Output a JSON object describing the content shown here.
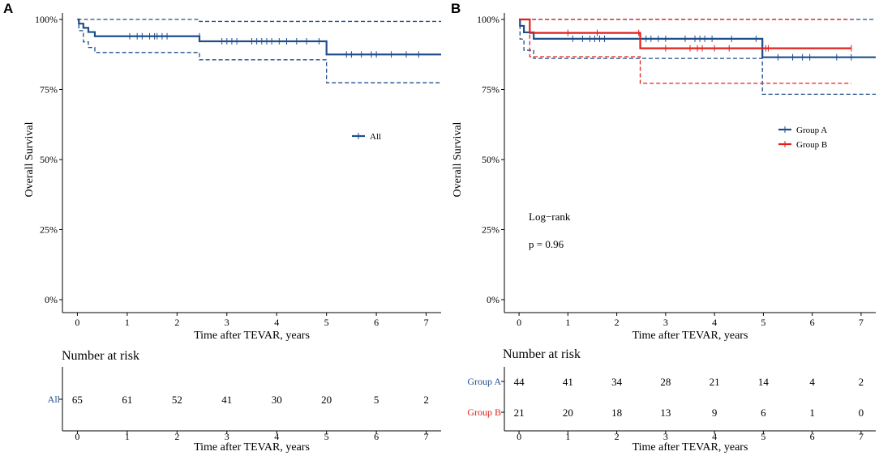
{
  "panels": {
    "A": {
      "letter": "A"
    },
    "B": {
      "letter": "B"
    }
  },
  "colors": {
    "blue": "#1f4e8c",
    "red": "#e0201b",
    "axis": "#000000"
  },
  "risk_common": {
    "title": "Number at risk",
    "xlabel": "Time after TEVAR, years"
  },
  "chart_data": [
    {
      "type": "line",
      "panel": "A",
      "subtype": "kaplan-meier",
      "xlabel": "Time after TEVAR, years",
      "ylabel": "Overall Survival",
      "xlim": [
        -0.3,
        7.3
      ],
      "ylim": [
        0,
        100
      ],
      "xticks": [
        0,
        1,
        2,
        3,
        4,
        5,
        6,
        7
      ],
      "yticks": [
        0,
        25,
        50,
        75,
        100
      ],
      "ytick_labels": [
        "0%",
        "25%",
        "50%",
        "75%",
        "100%"
      ],
      "legend": [
        "All"
      ],
      "series": [
        {
          "name": "All",
          "color": "#1f4e8c",
          "steps": [
            [
              0,
              100
            ],
            [
              0.03,
              98.5
            ],
            [
              0.12,
              97
            ],
            [
              0.22,
              95.5
            ],
            [
              0.35,
              94
            ],
            [
              2.45,
              94
            ],
            [
              2.45,
              92.2
            ],
            [
              4.9,
              92.2
            ],
            [
              5.0,
              87.5
            ],
            [
              7.3,
              87.5
            ]
          ],
          "ci_upper": [
            [
              0,
              100
            ],
            [
              2.45,
              100
            ],
            [
              2.45,
              99.3
            ],
            [
              7.3,
              99.3
            ]
          ],
          "ci_lower": [
            [
              0,
              100
            ],
            [
              0.03,
              96
            ],
            [
              0.12,
              92
            ],
            [
              0.22,
              90
            ],
            [
              0.35,
              88.2
            ],
            [
              2.45,
              88.2
            ],
            [
              2.45,
              85.6
            ],
            [
              5.0,
              85.6
            ],
            [
              5.0,
              77.4
            ],
            [
              7.3,
              77.4
            ]
          ],
          "censored": [
            [
              1.05,
              94
            ],
            [
              1.2,
              94
            ],
            [
              1.3,
              94
            ],
            [
              1.45,
              94
            ],
            [
              1.55,
              94
            ],
            [
              1.6,
              94
            ],
            [
              1.7,
              94
            ],
            [
              1.8,
              94
            ],
            [
              2.45,
              94
            ],
            [
              2.9,
              92.2
            ],
            [
              3.0,
              92.2
            ],
            [
              3.1,
              92.2
            ],
            [
              3.2,
              92.2
            ],
            [
              3.5,
              92.2
            ],
            [
              3.6,
              92.2
            ],
            [
              3.7,
              92.2
            ],
            [
              3.8,
              92.2
            ],
            [
              3.9,
              92.2
            ],
            [
              4.05,
              92.2
            ],
            [
              4.2,
              92.2
            ],
            [
              4.4,
              92.2
            ],
            [
              4.6,
              92.2
            ],
            [
              4.85,
              92.2
            ],
            [
              5.4,
              87.5
            ],
            [
              5.5,
              87.5
            ],
            [
              5.7,
              87.5
            ],
            [
              5.9,
              87.5
            ],
            [
              6.0,
              87.5
            ],
            [
              6.3,
              87.5
            ],
            [
              6.6,
              87.5
            ],
            [
              6.85,
              87.5
            ]
          ]
        }
      ],
      "risk_table": {
        "title": "Number at risk",
        "xlabel": "Time after TEVAR, years",
        "times": [
          0,
          1,
          2,
          3,
          4,
          5,
          6,
          7
        ],
        "rows": [
          {
            "label": "All",
            "color": "#1f4e8c",
            "values": [
              "65",
              "61",
              "52",
              "41",
              "30",
              "20",
              "5",
              "2"
            ]
          }
        ]
      }
    },
    {
      "type": "line",
      "panel": "B",
      "subtype": "kaplan-meier",
      "xlabel": "Time after TEVAR, years",
      "ylabel": "Overall Survival",
      "xlim": [
        -0.3,
        7.3
      ],
      "ylim": [
        0,
        100
      ],
      "xticks": [
        0,
        1,
        2,
        3,
        4,
        5,
        6,
        7
      ],
      "yticks": [
        0,
        25,
        50,
        75,
        100
      ],
      "ytick_labels": [
        "0%",
        "25%",
        "50%",
        "75%",
        "100%"
      ],
      "legend": [
        "Group A",
        "Group B"
      ],
      "annotations": [
        "Log−rank",
        "p = 0.96"
      ],
      "series": [
        {
          "name": "Group A",
          "color": "#1f4e8c",
          "steps": [
            [
              0,
              100
            ],
            [
              0.02,
              97.7
            ],
            [
              0.1,
              95.4
            ],
            [
              0.3,
              93.1
            ],
            [
              4.98,
              93.1
            ],
            [
              4.98,
              86.5
            ],
            [
              7.3,
              86.5
            ]
          ],
          "ci_upper": [
            [
              0,
              100
            ],
            [
              7.3,
              100
            ]
          ],
          "ci_lower": [
            [
              0,
              100
            ],
            [
              0.02,
              93
            ],
            [
              0.1,
              89
            ],
            [
              0.3,
              86.1
            ],
            [
              4.98,
              86.1
            ],
            [
              4.98,
              73.3
            ],
            [
              7.3,
              73.3
            ]
          ],
          "censored": [
            [
              1.1,
              93.1
            ],
            [
              1.3,
              93.1
            ],
            [
              1.45,
              93.1
            ],
            [
              1.55,
              93.1
            ],
            [
              1.65,
              93.1
            ],
            [
              1.75,
              93.1
            ],
            [
              2.6,
              93.1
            ],
            [
              2.7,
              93.1
            ],
            [
              2.85,
              93.1
            ],
            [
              3.0,
              93.1
            ],
            [
              3.4,
              93.1
            ],
            [
              3.6,
              93.1
            ],
            [
              3.7,
              93.1
            ],
            [
              3.8,
              93.1
            ],
            [
              3.95,
              93.1
            ],
            [
              4.35,
              93.1
            ],
            [
              4.85,
              93.1
            ],
            [
              5.3,
              86.5
            ],
            [
              5.6,
              86.5
            ],
            [
              5.8,
              86.5
            ],
            [
              5.95,
              86.5
            ],
            [
              6.5,
              86.5
            ],
            [
              6.8,
              86.5
            ]
          ]
        },
        {
          "name": "Group B",
          "color": "#e0201b",
          "steps": [
            [
              0,
              100
            ],
            [
              0.22,
              100
            ],
            [
              0.22,
              95.2
            ],
            [
              2.48,
              95.2
            ],
            [
              2.48,
              89.7
            ],
            [
              6.8,
              89.7
            ]
          ],
          "ci_upper": [
            [
              0,
              100
            ],
            [
              6.8,
              100
            ]
          ],
          "ci_lower": [
            [
              0,
              100
            ],
            [
              0.22,
              100
            ],
            [
              0.22,
              86.7
            ],
            [
              2.48,
              86.7
            ],
            [
              2.48,
              77.2
            ],
            [
              6.8,
              77.2
            ]
          ],
          "censored": [
            [
              1.0,
              95.2
            ],
            [
              1.6,
              95.2
            ],
            [
              2.45,
              95.2
            ],
            [
              3.0,
              89.7
            ],
            [
              3.5,
              89.7
            ],
            [
              3.65,
              89.7
            ],
            [
              3.75,
              89.7
            ],
            [
              4.0,
              89.7
            ],
            [
              4.3,
              89.7
            ],
            [
              5.05,
              89.7
            ],
            [
              5.1,
              89.7
            ],
            [
              6.8,
              89.7
            ]
          ]
        }
      ],
      "risk_table": {
        "title": "Number at risk",
        "xlabel": "Time after TEVAR, years",
        "times": [
          0,
          1,
          2,
          3,
          4,
          5,
          6,
          7
        ],
        "rows": [
          {
            "label": "Group A",
            "color": "#1f4e8c",
            "values": [
              "44",
              "41",
              "34",
              "28",
              "21",
              "14",
              "4",
              "2"
            ]
          },
          {
            "label": "Group B",
            "color": "#e0201b",
            "values": [
              "21",
              "20",
              "18",
              "13",
              "9",
              "6",
              "1",
              "0"
            ]
          }
        ]
      }
    }
  ]
}
